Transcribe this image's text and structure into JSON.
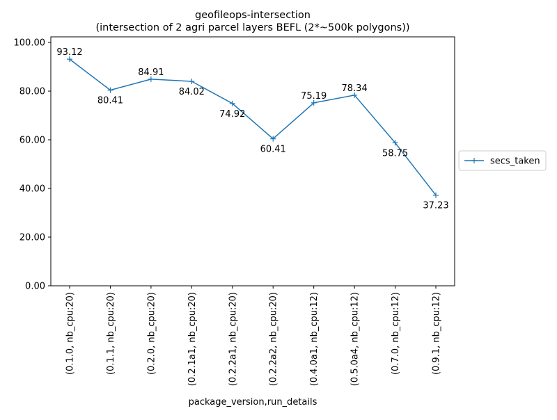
{
  "chart_data": {
    "type": "line",
    "title": "geofileops-intersection",
    "subtitle": "(intersection of 2 agri parcel layers BEFL (2*~500k polygons))",
    "xlabel": "package_version,run_details",
    "ylabel": "",
    "categories": [
      "(0.1.0, nb_cpu:20)",
      "(0.1.1, nb_cpu:20)",
      "(0.2.0, nb_cpu:20)",
      "(0.2.1a1, nb_cpu:20)",
      "(0.2.2a1, nb_cpu:20)",
      "(0.2.2a2, nb_cpu:20)",
      "(0.4.0a1, nb_cpu:12)",
      "(0.5.0a4, nb_cpu:12)",
      "(0.7.0, nb_cpu:12)",
      "(0.9.1, nb_cpu:12)"
    ],
    "series": [
      {
        "name": "secs_taken",
        "values": [
          93.12,
          80.41,
          84.91,
          84.02,
          74.92,
          60.41,
          75.19,
          78.34,
          58.75,
          37.23
        ],
        "data_labels": [
          "93.12",
          "80.41",
          "84.91",
          "84.02",
          "74.92",
          "60.41",
          "75.19",
          "78.34",
          "58.75",
          "37.23"
        ],
        "color": "#1f77b4",
        "marker": "+"
      }
    ],
    "ylim": [
      0,
      102.3
    ],
    "yticks": [
      0,
      20,
      40,
      60,
      80,
      100
    ],
    "ytick_labels": [
      "0.00",
      "20.00",
      "40.00",
      "60.00",
      "80.00",
      "100.00"
    ],
    "grid": false,
    "legend_position": "outside-right"
  }
}
